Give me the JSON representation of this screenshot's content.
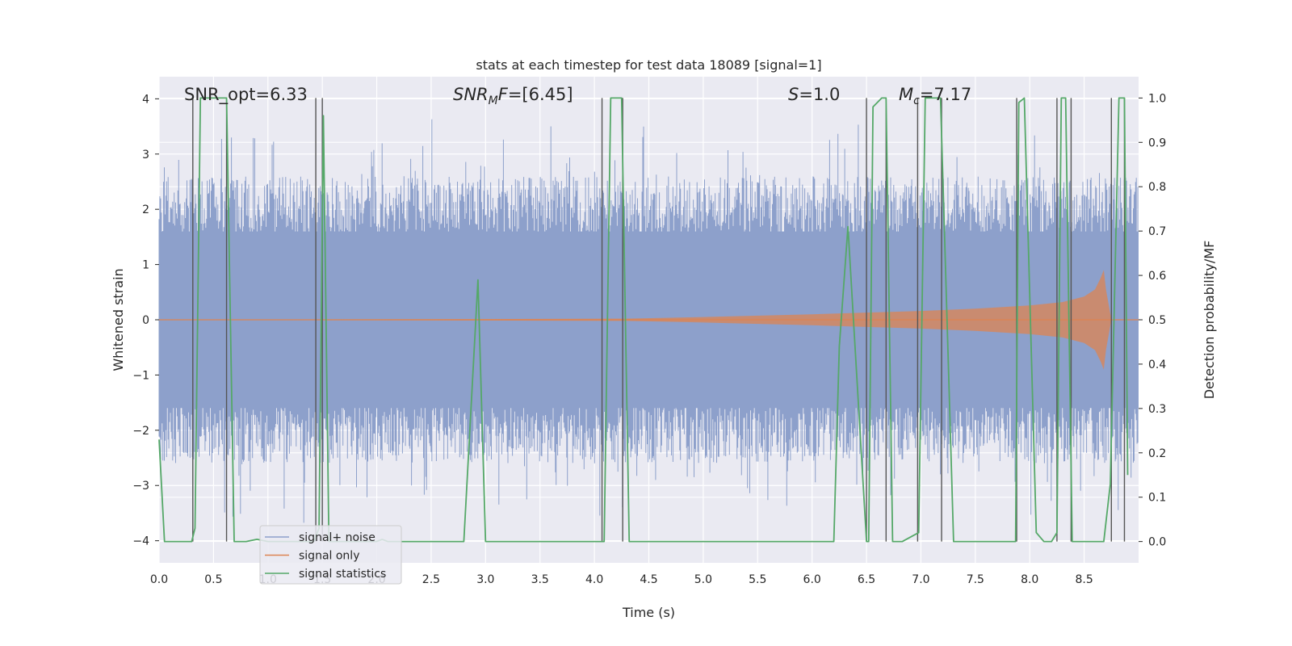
{
  "chart_data": {
    "type": "line",
    "title": "stats at each timestep for test data 18089 [signal=1]",
    "xlabel": "Time (s)",
    "ylabel": "Whitened strain",
    "y2label": "Detection probability/MF",
    "xlim": [
      0.0,
      9.0
    ],
    "ylim": [
      -4.4,
      4.4
    ],
    "y2lim": [
      -0.048,
      1.048
    ],
    "xticks": [
      "0.0",
      "0.5",
      "1.0",
      "1.5",
      "2.0",
      "2.5",
      "3.0",
      "3.5",
      "4.0",
      "4.5",
      "5.0",
      "5.5",
      "6.0",
      "6.5",
      "7.0",
      "7.5",
      "8.0",
      "8.5"
    ],
    "xtick_values": [
      0.0,
      0.5,
      1.0,
      1.5,
      2.0,
      2.5,
      3.0,
      3.5,
      4.0,
      4.5,
      5.0,
      5.5,
      6.0,
      6.5,
      7.0,
      7.5,
      8.0,
      8.5
    ],
    "yticks": [
      "4",
      "3",
      "2",
      "1",
      "0",
      "−1",
      "−2",
      "−3",
      "−4"
    ],
    "ytick_values": [
      4,
      3,
      2,
      1,
      0,
      -1,
      -2,
      -3,
      -4
    ],
    "y2ticks": [
      "1.0",
      "0.9",
      "0.8",
      "0.7",
      "0.6",
      "0.5",
      "0.4",
      "0.3",
      "0.2",
      "0.1",
      "0.0"
    ],
    "y2tick_values": [
      1.0,
      0.9,
      0.8,
      0.7,
      0.6,
      0.5,
      0.4,
      0.3,
      0.2,
      0.1,
      0.0
    ],
    "annotations": {
      "snr_opt": "SNR_opt=6.33",
      "snr_mf_label": "SNR",
      "snr_mf_sub": "M",
      "snr_mf_rest": "F",
      "snr_mf_value": "=[6.45]",
      "s_label": "S",
      "s_value": "=1.0",
      "mc_label": "M",
      "mc_sub": "c",
      "mc_value": "=7.17"
    },
    "legend": {
      "position": "lower-left",
      "entries": [
        "signal+ noise",
        "signal only",
        "signal statistics"
      ]
    },
    "series": [
      {
        "name": "signal+ noise",
        "color": "#8da0cb",
        "description_values": {
          "noise_band": [
            -1.6,
            1.6
          ],
          "peak_max": 3.7,
          "peak_min": -3.95
        }
      },
      {
        "name": "signal only",
        "color": "#dd8452",
        "envelope_t": [
          0.0,
          4.3,
          5.0,
          6.0,
          6.5,
          7.0,
          7.5,
          8.0,
          8.3,
          8.5,
          8.6,
          8.65,
          8.68,
          8.7,
          8.75
        ],
        "envelope_amp": [
          0.0,
          0.02,
          0.05,
          0.1,
          0.13,
          0.16,
          0.2,
          0.26,
          0.32,
          0.42,
          0.55,
          0.75,
          0.9,
          0.55,
          0.0
        ]
      },
      {
        "name": "signal statistics",
        "color": "#55a868",
        "axis": "right",
        "x": [
          0.0,
          0.05,
          0.3,
          0.33,
          0.38,
          0.62,
          0.69,
          0.8,
          0.9,
          1.0,
          1.42,
          1.47,
          1.51,
          1.56,
          2.0,
          2.05,
          2.1,
          2.6,
          2.8,
          2.93,
          3.0,
          4.05,
          4.09,
          4.15,
          4.25,
          4.32,
          6.2,
          6.25,
          6.33,
          6.5,
          6.52,
          6.56,
          6.64,
          6.68,
          6.74,
          6.83,
          6.98,
          7.04,
          7.08,
          7.18,
          7.3,
          7.87,
          7.9,
          7.95,
          8.06,
          8.13,
          8.2,
          8.25,
          8.29,
          8.33,
          8.39,
          8.48,
          8.68,
          8.74,
          8.82,
          8.87,
          8.9
        ],
        "y": [
          0.23,
          0.0,
          0.0,
          0.03,
          1.0,
          1.0,
          0.0,
          0.0,
          0.005,
          0.0,
          0.0,
          0.03,
          0.96,
          0.0,
          0.0,
          0.005,
          0.0,
          0.0,
          0.0,
          0.59,
          0.0,
          0.0,
          0.0,
          1.0,
          1.0,
          0.0,
          0.0,
          0.44,
          0.71,
          0.0,
          0.0,
          0.98,
          1.0,
          1.0,
          0.0,
          0.0,
          0.02,
          1.0,
          1.0,
          1.0,
          0.0,
          0.0,
          0.99,
          1.0,
          0.02,
          0.0,
          0.0,
          0.02,
          1.0,
          1.0,
          0.0,
          0.0,
          0.0,
          0.13,
          1.0,
          1.0,
          0.15
        ]
      }
    ],
    "vertical_markers": [
      0.31,
      0.62,
      1.44,
      1.5,
      4.07,
      4.26,
      6.5,
      6.68,
      6.97,
      7.19,
      7.88,
      8.25,
      8.38,
      8.75,
      8.87
    ]
  }
}
